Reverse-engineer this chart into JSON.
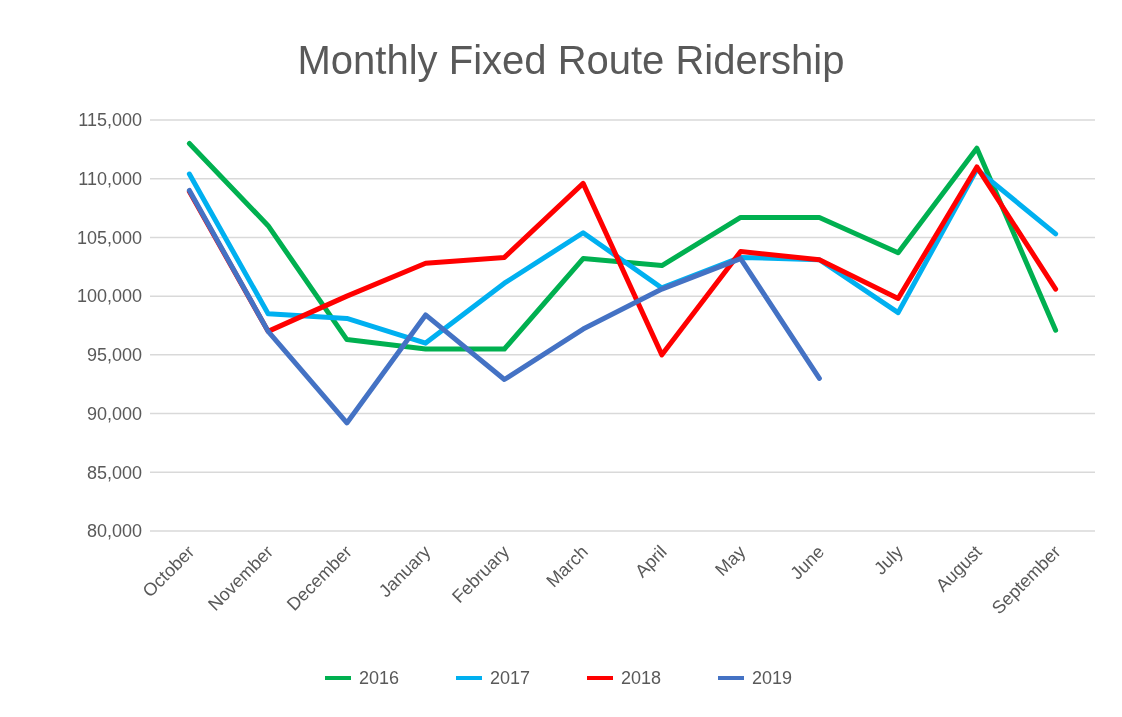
{
  "chart_data": {
    "type": "line",
    "title": "Monthly Fixed Route Ridership",
    "categories": [
      "October",
      "November",
      "December",
      "January",
      "February",
      "March",
      "April",
      "May",
      "June",
      "July",
      "August",
      "September"
    ],
    "series": [
      {
        "name": "2016",
        "color": "#00b050",
        "values": [
          113000,
          106000,
          96300,
          95500,
          95500,
          103200,
          102600,
          106700,
          106700,
          103700,
          112600,
          97100
        ]
      },
      {
        "name": "2017",
        "color": "#00b0f0",
        "values": [
          110400,
          98500,
          98100,
          96000,
          101100,
          105400,
          100700,
          103300,
          103100,
          98600,
          110800,
          105300
        ]
      },
      {
        "name": "2018",
        "color": "#ff0000",
        "values": [
          108900,
          97000,
          100000,
          102800,
          103300,
          109600,
          95000,
          103800,
          103100,
          99800,
          111000,
          100600
        ]
      },
      {
        "name": "2019",
        "color": "#4472c4",
        "values": [
          109000,
          97000,
          89200,
          98400,
          92900,
          97200,
          100600,
          103200,
          93000,
          null,
          null,
          null
        ]
      }
    ],
    "ylim": [
      80000,
      115000
    ],
    "yticks": [
      {
        "value": 80000,
        "label": "80,000"
      },
      {
        "value": 85000,
        "label": "85,000"
      },
      {
        "value": 90000,
        "label": "90,000"
      },
      {
        "value": 95000,
        "label": "95,000"
      },
      {
        "value": 100000,
        "label": "100,000"
      },
      {
        "value": 105000,
        "label": "105,000"
      },
      {
        "value": 110000,
        "label": "110,000"
      },
      {
        "value": 115000,
        "label": "115,000"
      }
    ],
    "grid": "y",
    "legend": "bottom",
    "line_style": "solid"
  }
}
